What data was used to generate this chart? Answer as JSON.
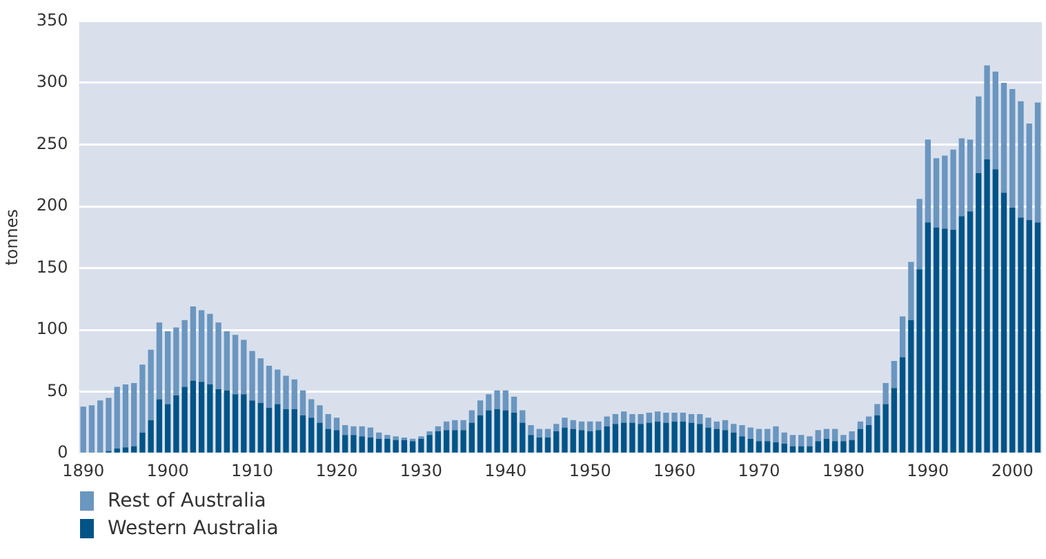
{
  "chart_data": {
    "type": "bar",
    "ylabel": "tonnes",
    "stacked": true,
    "grid": "y",
    "legend": "bottom left",
    "categories": [
      "1890",
      null,
      null,
      null,
      null,
      null,
      null,
      null,
      null,
      null,
      "1900",
      null,
      null,
      null,
      null,
      null,
      null,
      null,
      null,
      null,
      "1910",
      null,
      null,
      null,
      null,
      null,
      null,
      null,
      null,
      null,
      "1920",
      null,
      null,
      null,
      null,
      null,
      null,
      null,
      null,
      null,
      "1930",
      null,
      null,
      null,
      null,
      null,
      null,
      null,
      null,
      null,
      "1940",
      null,
      null,
      null,
      null,
      null,
      null,
      null,
      null,
      null,
      "1950",
      null,
      null,
      null,
      null,
      null,
      null,
      null,
      null,
      null,
      "1960",
      null,
      null,
      null,
      null,
      null,
      null,
      null,
      null,
      null,
      "1970",
      null,
      null,
      null,
      null,
      null,
      null,
      null,
      null,
      null,
      "1980",
      null,
      null,
      null,
      null,
      null,
      null,
      null,
      null,
      null,
      "1990",
      null,
      null,
      null,
      null,
      null,
      null,
      null,
      null,
      null,
      "2000",
      null,
      null,
      null
    ],
    "ylim": [
      0,
      350
    ],
    "yticks": [
      0,
      50,
      100,
      150,
      200,
      250,
      300,
      350
    ],
    "series": [
      {
        "name": "Western Australia",
        "color": "#005487",
        "values": [
          0,
          0,
          0,
          2,
          4,
          5,
          6,
          17,
          27,
          44,
          40,
          47,
          54,
          59,
          58,
          56,
          52,
          51,
          48,
          48,
          43,
          41,
          37,
          40,
          36,
          36,
          31,
          29,
          25,
          20,
          19,
          15,
          15,
          14,
          13,
          12,
          12,
          11,
          11,
          10,
          12,
          15,
          18,
          19,
          19,
          19,
          25,
          31,
          35,
          36,
          35,
          33,
          25,
          15,
          13,
          13,
          18,
          21,
          20,
          19,
          18,
          19,
          22,
          24,
          25,
          25,
          24,
          25,
          26,
          25,
          26,
          26,
          25,
          24,
          21,
          20,
          19,
          17,
          14,
          12,
          10,
          10,
          9,
          8,
          6,
          6,
          6,
          10,
          12,
          10,
          10,
          11,
          20,
          23,
          31,
          40,
          53,
          78,
          108,
          149,
          187,
          183,
          182,
          181,
          192,
          196,
          227,
          238,
          230,
          211,
          199,
          191,
          189,
          187
        ]
      },
      {
        "name": "Rest of Australia",
        "color": "#6a96c0",
        "values": [
          38,
          39,
          43,
          43,
          50,
          51,
          51,
          55,
          57,
          62,
          59,
          55,
          54,
          60,
          58,
          57,
          54,
          48,
          48,
          44,
          40,
          36,
          34,
          28,
          27,
          24,
          20,
          15,
          14,
          12,
          10,
          8,
          7,
          8,
          8,
          5,
          3,
          3,
          2,
          2,
          2,
          3,
          4,
          7,
          8,
          8,
          10,
          12,
          13,
          15,
          16,
          13,
          10,
          8,
          7,
          7,
          6,
          8,
          7,
          7,
          8,
          7,
          8,
          8,
          9,
          7,
          8,
          8,
          8,
          8,
          7,
          7,
          7,
          8,
          8,
          6,
          8,
          7,
          9,
          9,
          10,
          10,
          13,
          9,
          9,
          9,
          8,
          9,
          8,
          10,
          5,
          7,
          6,
          7,
          9,
          17,
          22,
          33,
          47,
          57,
          67,
          56,
          59,
          65,
          63,
          58,
          62,
          76,
          79,
          89,
          96,
          94,
          78,
          97
        ]
      }
    ]
  }
}
